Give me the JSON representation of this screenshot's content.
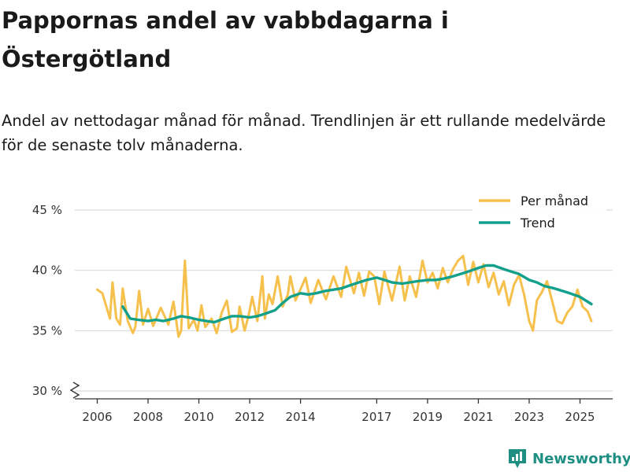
{
  "title": "Pappornas andel av vabbdagarna i Östergötland",
  "subtitle": "Andel av nettodagar månad för månad. Trendlinjen är ett rullande medelvärde för de senaste tolv månaderna.",
  "brand": {
    "name": "Newsworthy",
    "color": "#1f8f84"
  },
  "colors": {
    "monthly": "#f6c04d",
    "trend": "#12a08b",
    "grid": "#d9d9d9",
    "axis": "#333333"
  },
  "chart_data": {
    "type": "line",
    "ylim": [
      30,
      45.5
    ],
    "xlim": [
      2005.6,
      2026.3
    ],
    "y_ticks": [
      {
        "value": 30,
        "label": "30 %"
      },
      {
        "value": 35,
        "label": "35 %"
      },
      {
        "value": 40,
        "label": "40 %"
      },
      {
        "value": 45,
        "label": "45 %"
      }
    ],
    "x_ticks": [
      {
        "value": 2006,
        "label": "2006"
      },
      {
        "value": 2008,
        "label": "2008"
      },
      {
        "value": 2010,
        "label": "2010"
      },
      {
        "value": 2012,
        "label": "2012"
      },
      {
        "value": 2014,
        "label": "2014"
      },
      {
        "value": 2017,
        "label": "2017"
      },
      {
        "value": 2019,
        "label": "2019"
      },
      {
        "value": 2021,
        "label": "2021"
      },
      {
        "value": 2023,
        "label": "2023"
      },
      {
        "value": 2025,
        "label": "2025"
      }
    ],
    "y_axis_break": true,
    "legend": {
      "position": "top-right",
      "entries": [
        "Per månad",
        "Trend"
      ]
    },
    "series": [
      {
        "name": "Per månad",
        "color": "#f6c04d",
        "x": [
          2006.0,
          2006.2,
          2006.5,
          2006.6,
          2006.75,
          2006.9,
          2007.0,
          2007.2,
          2007.4,
          2007.5,
          2007.65,
          2007.8,
          2008.0,
          2008.2,
          2008.5,
          2008.8,
          2009.0,
          2009.2,
          2009.3,
          2009.45,
          2009.6,
          2009.8,
          2009.95,
          2010.1,
          2010.25,
          2010.5,
          2010.7,
          2010.9,
          2011.1,
          2011.3,
          2011.5,
          2011.6,
          2011.8,
          2011.95,
          2012.1,
          2012.3,
          2012.5,
          2012.6,
          2012.75,
          2012.9,
          2013.1,
          2013.3,
          2013.5,
          2013.6,
          2013.8,
          2013.95,
          2014.2,
          2014.4,
          2014.7,
          2015.0,
          2015.3,
          2015.6,
          2015.8,
          2016.1,
          2016.3,
          2016.5,
          2016.7,
          2016.9,
          2017.1,
          2017.3,
          2017.6,
          2017.9,
          2018.1,
          2018.3,
          2018.55,
          2018.8,
          2019.0,
          2019.2,
          2019.4,
          2019.6,
          2019.8,
          2020.0,
          2020.2,
          2020.4,
          2020.6,
          2020.8,
          2021.0,
          2021.2,
          2021.4,
          2021.6,
          2021.8,
          2022.0,
          2022.2,
          2022.4,
          2022.6,
          2022.8,
          2023.0,
          2023.15,
          2023.3,
          2023.5,
          2023.7,
          2023.9,
          2024.1,
          2024.3,
          2024.5,
          2024.7,
          2024.9,
          2025.1,
          2025.3,
          2025.45
        ],
        "values": [
          38.4,
          38.1,
          36.0,
          39.0,
          36.0,
          35.5,
          38.5,
          35.8,
          34.8,
          35.3,
          38.3,
          35.5,
          36.8,
          35.4,
          36.9,
          35.5,
          37.4,
          34.5,
          35.0,
          40.8,
          35.2,
          35.9,
          35.0,
          37.1,
          35.3,
          36.0,
          34.8,
          36.5,
          37.5,
          34.9,
          35.2,
          37.0,
          35.0,
          36.2,
          37.8,
          35.8,
          39.5,
          36.0,
          38.0,
          37.2,
          39.5,
          37.0,
          38.0,
          39.5,
          37.5,
          38.2,
          39.4,
          37.3,
          39.2,
          37.6,
          39.5,
          37.8,
          40.3,
          38.1,
          39.8,
          37.9,
          39.9,
          39.5,
          37.2,
          39.9,
          37.5,
          40.3,
          37.5,
          39.5,
          37.8,
          40.8,
          39.0,
          39.8,
          38.5,
          40.2,
          39.0,
          40.1,
          40.8,
          41.2,
          38.8,
          40.7,
          39.0,
          40.5,
          38.6,
          39.8,
          38.0,
          39.1,
          37.1,
          38.8,
          39.6,
          38.0,
          35.8,
          35.0,
          37.5,
          38.2,
          39.1,
          37.5,
          35.8,
          35.6,
          36.5,
          37.0,
          38.4,
          37.0,
          36.6,
          35.8
        ]
      },
      {
        "name": "Trend",
        "color": "#12a08b",
        "x": [
          2007.0,
          2007.3,
          2007.6,
          2008.0,
          2008.3,
          2008.6,
          2009.0,
          2009.3,
          2009.6,
          2010.0,
          2010.3,
          2010.6,
          2011.0,
          2011.3,
          2011.6,
          2012.0,
          2012.3,
          2012.6,
          2013.0,
          2013.3,
          2013.6,
          2014.0,
          2014.3,
          2014.6,
          2015.0,
          2015.3,
          2015.6,
          2016.0,
          2016.3,
          2016.6,
          2017.0,
          2017.3,
          2017.6,
          2018.0,
          2018.3,
          2018.6,
          2019.0,
          2019.3,
          2019.6,
          2020.0,
          2020.3,
          2020.6,
          2021.0,
          2021.3,
          2021.6,
          2022.0,
          2022.3,
          2022.6,
          2023.0,
          2023.3,
          2023.6,
          2024.0,
          2024.3,
          2024.6,
          2025.0,
          2025.3,
          2025.45
        ],
        "values": [
          37.0,
          36.0,
          35.9,
          35.8,
          35.9,
          35.8,
          36.0,
          36.2,
          36.1,
          35.9,
          35.8,
          35.7,
          36.0,
          36.2,
          36.2,
          36.1,
          36.2,
          36.4,
          36.7,
          37.3,
          37.8,
          38.1,
          38.0,
          38.1,
          38.3,
          38.4,
          38.5,
          38.8,
          39.0,
          39.2,
          39.4,
          39.2,
          39.0,
          38.9,
          39.0,
          39.1,
          39.2,
          39.2,
          39.3,
          39.5,
          39.7,
          39.9,
          40.2,
          40.4,
          40.4,
          40.1,
          39.9,
          39.7,
          39.2,
          39.0,
          38.7,
          38.5,
          38.3,
          38.1,
          37.8,
          37.4,
          37.2
        ]
      }
    ]
  }
}
